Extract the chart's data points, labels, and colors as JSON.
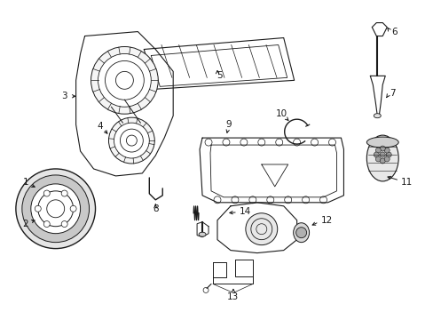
{
  "background_color": "#ffffff",
  "line_color": "#1a1a1a",
  "fig_width": 4.89,
  "fig_height": 3.6,
  "dpi": 100,
  "label_fontsize": 7.5,
  "lw": 0.7
}
